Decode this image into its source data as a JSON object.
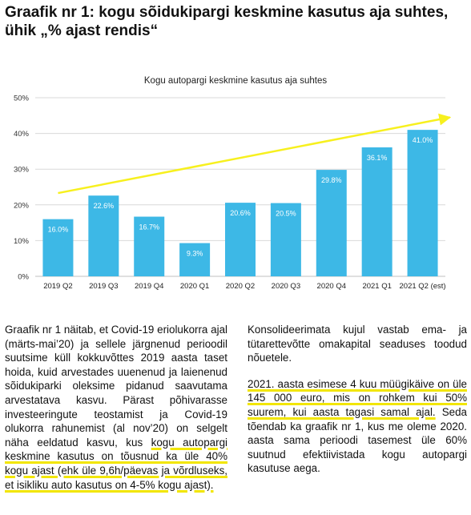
{
  "heading": {
    "line1": "Graafik nr 1: kogu sõidukipargi keskmine kasutus aja suhtes,",
    "line2": "ühik „% ajast rendis“"
  },
  "chart_data": {
    "type": "bar",
    "title": "Kogu autopargi keskmine kasutus aja suhtes",
    "categories": [
      "2019 Q2",
      "2019 Q3",
      "2019 Q4",
      "2020 Q1",
      "2020 Q2",
      "2020 Q3",
      "2020 Q4",
      "2021 Q1",
      "2021 Q2 (est)"
    ],
    "values": [
      16.0,
      22.6,
      16.7,
      9.3,
      20.6,
      20.5,
      29.8,
      36.1,
      41.0
    ],
    "data_labels": [
      "16.0%",
      "22.6%",
      "16.7%",
      "9.3%",
      "20.6%",
      "20.5%",
      "29.8%",
      "36.1%",
      "41.0%"
    ],
    "y_ticks": [
      0,
      10,
      20,
      30,
      40,
      50
    ],
    "y_tick_labels": [
      "0%",
      "10%",
      "20%",
      "30%",
      "40%",
      "50%"
    ],
    "ylim": [
      0,
      50
    ],
    "xlabel": "",
    "ylabel": "",
    "grid": true,
    "legend": "none",
    "bar_color": "#3db8e6",
    "grid_color": "#d9d9d9",
    "trend_arrow": {
      "color": "#f7f01e",
      "from": [
        0,
        23.3
      ],
      "to": [
        8.6,
        44.5
      ]
    }
  },
  "text": {
    "left_para": [
      {
        "t": "Graafik nr 1 näitab, et Covid-19 eriolukorra ajal (märts-mai’20) ja sellele järgnenud perioodil suutsime küll kokkuvõttes 2019 aasta taset hoida, kuid arvestades uuenenud ja laienenud sõidukiparki oleksime pidanud saavutama arvestatava kasvu. Pärast põhivarasse investeeringute teostamist ja Covid-19 olukorra rahunemist (al nov’20) on selgelt näha eeldatud kasvu, kus ",
        "hl": false
      },
      {
        "t": "kogu autopargi keskmine kasutus on tõusnud ka üle 40% kogu ajast (ehk üle 9,6h/päevas ja võrdluseks, et isikliku auto kasutus on 4-5% kogu ajast).",
        "hl": true
      }
    ],
    "right_para1": "Konsolideerimata kujul vastab ema- ja tütarettevõtte omakapital seaduses toodud nõuetele.",
    "right_para2": [
      {
        "t": "2021. aasta esimese 4 kuu müügikäive on üle 145 000 euro, mis on rohkem kui 50% suurem, kui aasta tagasi samal ajal.",
        "hl": true
      },
      {
        "t": " Seda tõendab ka graafik nr 1, kus me oleme 2020. aasta sama perioodi tasemest üle 60% suutnud efektiivistada kogu autopargi kasutuse aega.",
        "hl": false
      }
    ]
  }
}
